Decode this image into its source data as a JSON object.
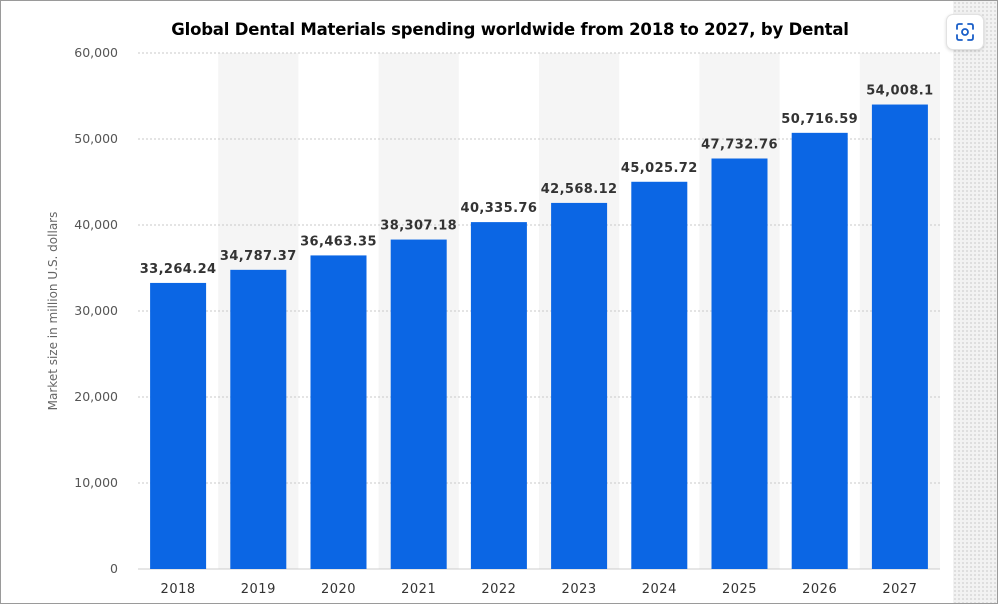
{
  "chart_data": {
    "type": "bar",
    "title": "Global Dental Materials spending worldwide from 2018 to 2027, by Dental",
    "ylabel": "Market size in million U.S. dollars",
    "xlabel": "",
    "categories": [
      "2018",
      "2019",
      "2020",
      "2021",
      "2022",
      "2023",
      "2024",
      "2025",
      "2026",
      "2027"
    ],
    "values": [
      33264.24,
      34787.37,
      36463.35,
      38307.18,
      40335.76,
      42568.12,
      45025.72,
      47732.76,
      50716.59,
      54008.1
    ],
    "data_labels": [
      "33,264.24",
      "34,787.37",
      "36,463.35",
      "38,307.18",
      "40,335.76",
      "42,568.12",
      "45,025.72",
      "47,732.76",
      "50,716.59",
      "54,008.1"
    ],
    "ylim": [
      0,
      60000
    ],
    "yticks": [
      0,
      10000,
      20000,
      30000,
      40000,
      50000,
      60000
    ],
    "ytick_labels": [
      "0",
      "10,000",
      "20,000",
      "30,000",
      "40,000",
      "50,000",
      "60,000"
    ],
    "grid": true,
    "colors": {
      "bar": "#0b66e4",
      "band": "#f5f5f5",
      "grid": "#c9c9c9"
    }
  },
  "toolbar": {
    "focus_icon": "focus-scan-icon"
  }
}
